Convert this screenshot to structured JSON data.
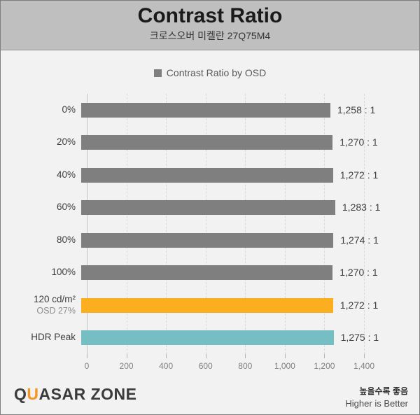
{
  "header": {
    "title": "Contrast Ratio",
    "subtitle": "크로스오버 미켈란 27Q75M4"
  },
  "legend": {
    "label": "Contrast Ratio by OSD",
    "swatch_color": "#7F7F7F"
  },
  "chart_data": {
    "type": "bar",
    "orientation": "horizontal",
    "title": "Contrast Ratio",
    "subtitle": "크로스오버 미켈란 27Q75M4",
    "legend_entries": [
      "Contrast Ratio by OSD"
    ],
    "xlim": [
      0,
      1400
    ],
    "x_ticks": [
      "0",
      "200",
      "400",
      "600",
      "800",
      "1,000",
      "1,200",
      "1,400"
    ],
    "grid": "vertical-dashed",
    "legend_position": "top-center",
    "rows": [
      {
        "label": "0%",
        "sublabel": "",
        "value": 1258,
        "display": "1,258 : 1",
        "color": "#7F7F7F"
      },
      {
        "label": "20%",
        "sublabel": "",
        "value": 1270,
        "display": "1,270 : 1",
        "color": "#7F7F7F"
      },
      {
        "label": "40%",
        "sublabel": "",
        "value": 1272,
        "display": "1,272 : 1",
        "color": "#7F7F7F"
      },
      {
        "label": "60%",
        "sublabel": "",
        "value": 1283,
        "display": "1,283 : 1",
        "color": "#7F7F7F"
      },
      {
        "label": "80%",
        "sublabel": "",
        "value": 1274,
        "display": "1,274 : 1",
        "color": "#7F7F7F"
      },
      {
        "label": "100%",
        "sublabel": "",
        "value": 1270,
        "display": "1,270 : 1",
        "color": "#7F7F7F"
      },
      {
        "label": "120 cd/m²",
        "sublabel": "OSD 27%",
        "value": 1272,
        "display": "1,272 : 1",
        "color": "#FBAE1E"
      },
      {
        "label": "HDR Peak",
        "sublabel": "",
        "value": 1275,
        "display": "1,275 : 1",
        "color": "#74BEC4"
      }
    ]
  },
  "footer": {
    "logo_part1": "Q",
    "logo_accent": "U",
    "logo_part2": "ASAR ZONE",
    "note_ko": "높을수록 좋음",
    "note_en": "Higher is Better"
  },
  "colors": {
    "bar_gray": "#7F7F7F",
    "bar_orange": "#FBAE1E",
    "bar_teal": "#74BEC4",
    "header_bg": "#BFBFBF",
    "body_bg": "#F2F2F2",
    "border": "#7F7F7F"
  }
}
